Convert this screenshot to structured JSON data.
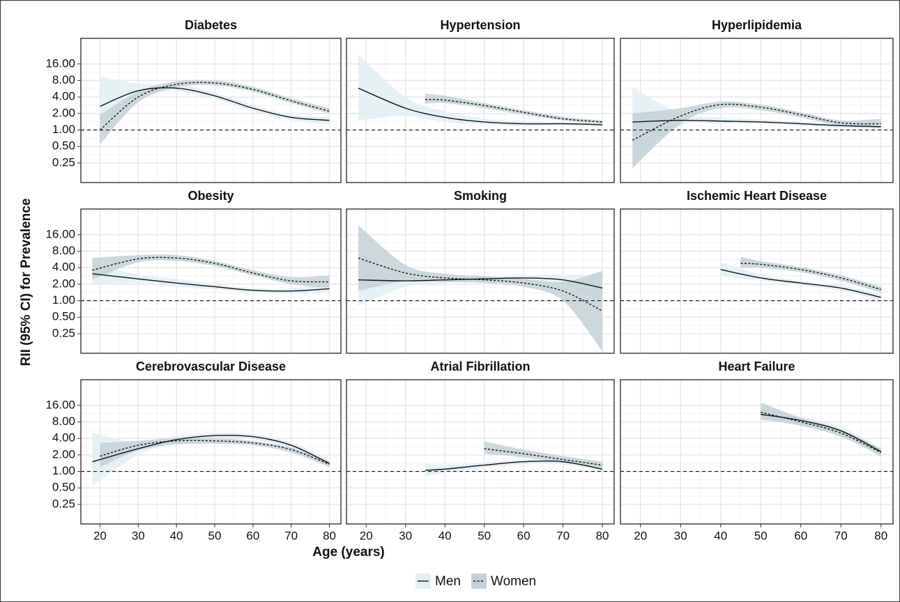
{
  "chart_data": [
    {
      "type": "line",
      "title": "Diabetes",
      "log_y": true,
      "grid": true,
      "hline": 1,
      "xlim": [
        15,
        83
      ],
      "ylim": [
        0.11,
        47
      ],
      "xticks": [
        20,
        30,
        40,
        50,
        60,
        70,
        80
      ],
      "yticks": [
        {
          "value": 0.25,
          "label": "0.25"
        },
        {
          "value": 0.5,
          "label": "0.50"
        },
        {
          "value": 1,
          "label": "1.00"
        },
        {
          "value": 2,
          "label": "2.00"
        },
        {
          "value": 4,
          "label": "4.00"
        },
        {
          "value": 8,
          "label": "8.00"
        },
        {
          "value": 16,
          "label": "16.00"
        }
      ],
      "series": [
        {
          "name": "Men",
          "color": "#e2eff4",
          "linestyle": "solid",
          "x": [
            20,
            30,
            40,
            50,
            60,
            70,
            80
          ],
          "values": [
            2.7,
            5.2,
            5.8,
            4.2,
            2.5,
            1.7,
            1.5
          ],
          "lower": [
            1.2,
            4.0,
            5.0,
            3.7,
            2.2,
            1.5,
            1.3
          ],
          "upper": [
            9.5,
            7.0,
            6.8,
            4.8,
            2.9,
            1.9,
            1.7
          ]
        },
        {
          "name": "Women",
          "color": "#c3d1d6",
          "linestyle": "dotted",
          "x": [
            20,
            30,
            40,
            50,
            60,
            70,
            80
          ],
          "values": [
            1.0,
            4.0,
            6.8,
            7.2,
            5.5,
            3.4,
            2.2
          ],
          "lower": [
            0.55,
            3.2,
            6.0,
            6.5,
            5.0,
            3.1,
            2.0
          ],
          "upper": [
            1.9,
            5.0,
            7.7,
            8.0,
            6.1,
            3.8,
            2.5
          ]
        }
      ]
    },
    {
      "type": "line",
      "title": "Hypertension",
      "log_y": true,
      "grid": true,
      "hline": 1,
      "xlim": [
        15,
        83
      ],
      "ylim": [
        0.11,
        47
      ],
      "xticks": [
        20,
        30,
        40,
        50,
        60,
        70,
        80
      ],
      "yticks": [
        0.25,
        0.5,
        1,
        2,
        4,
        8,
        16
      ],
      "series": [
        {
          "name": "Men",
          "color": "#e2eff4",
          "linestyle": "solid",
          "x": [
            18,
            30,
            40,
            50,
            60,
            70,
            80
          ],
          "values": [
            5.8,
            2.5,
            1.7,
            1.4,
            1.3,
            1.3,
            1.25
          ],
          "lower": [
            1.5,
            1.8,
            1.4,
            1.25,
            1.2,
            1.2,
            1.15
          ],
          "upper": [
            24,
            4.0,
            2.2,
            1.6,
            1.45,
            1.4,
            1.35
          ]
        },
        {
          "name": "Women",
          "color": "#c3d1d6",
          "linestyle": "dotted",
          "x": [
            35,
            40,
            50,
            60,
            70,
            80
          ],
          "values": [
            3.6,
            3.5,
            2.8,
            2.1,
            1.6,
            1.4
          ],
          "lower": [
            3.0,
            3.1,
            2.5,
            1.9,
            1.5,
            1.3
          ],
          "upper": [
            4.6,
            4.2,
            3.1,
            2.3,
            1.75,
            1.5
          ]
        }
      ]
    },
    {
      "type": "line",
      "title": "Hyperlipidemia",
      "log_y": true,
      "grid": true,
      "hline": 1,
      "xlim": [
        15,
        83
      ],
      "ylim": [
        0.11,
        47
      ],
      "xticks": [
        20,
        30,
        40,
        50,
        60,
        70,
        80
      ],
      "yticks": [
        0.25,
        0.5,
        1,
        2,
        4,
        8,
        16
      ],
      "series": [
        {
          "name": "Men",
          "color": "#e2eff4",
          "linestyle": "solid",
          "x": [
            18,
            30,
            40,
            50,
            60,
            70,
            80
          ],
          "values": [
            1.4,
            1.5,
            1.45,
            1.4,
            1.3,
            1.2,
            1.15
          ],
          "lower": [
            0.3,
            1.2,
            1.3,
            1.3,
            1.2,
            1.1,
            1.05
          ],
          "upper": [
            6,
            2.0,
            1.7,
            1.55,
            1.4,
            1.3,
            1.3
          ]
        },
        {
          "name": "Women",
          "color": "#c3d1d6",
          "linestyle": "dotted",
          "x": [
            18,
            30,
            40,
            50,
            60,
            70,
            80
          ],
          "values": [
            0.65,
            1.8,
            2.9,
            2.6,
            1.9,
            1.35,
            1.3
          ],
          "lower": [
            0.2,
            1.3,
            2.5,
            2.3,
            1.7,
            1.2,
            1.1
          ],
          "upper": [
            2.0,
            2.5,
            3.3,
            2.9,
            2.1,
            1.5,
            1.6
          ]
        }
      ]
    },
    {
      "type": "line",
      "title": "Obesity",
      "log_y": true,
      "grid": true,
      "hline": 1,
      "xlim": [
        15,
        83
      ],
      "ylim": [
        0.11,
        47
      ],
      "xticks": [
        20,
        30,
        40,
        50,
        60,
        70,
        80
      ],
      "yticks": [
        {
          "value": 0.25,
          "label": "0.25"
        },
        {
          "value": 0.5,
          "label": "0.50"
        },
        {
          "value": 1,
          "label": "1.00"
        },
        {
          "value": 2,
          "label": "2.00"
        },
        {
          "value": 4,
          "label": "4.00"
        },
        {
          "value": 8,
          "label": "8.00"
        },
        {
          "value": 16,
          "label": "16.00"
        }
      ],
      "series": [
        {
          "name": "Men",
          "color": "#e2eff4",
          "linestyle": "solid",
          "x": [
            18,
            30,
            40,
            50,
            60,
            70,
            80
          ],
          "values": [
            3.1,
            2.5,
            2.1,
            1.8,
            1.55,
            1.5,
            1.65
          ],
          "lower": [
            2.0,
            2.1,
            1.8,
            1.6,
            1.4,
            1.35,
            1.4
          ],
          "upper": [
            4.8,
            3.0,
            2.5,
            2.0,
            1.7,
            1.7,
            2.0
          ]
        },
        {
          "name": "Women",
          "color": "#c3d1d6",
          "linestyle": "dotted",
          "x": [
            18,
            30,
            40,
            50,
            60,
            70,
            80
          ],
          "values": [
            3.6,
            5.8,
            6.0,
            4.8,
            3.2,
            2.3,
            2.2
          ],
          "lower": [
            2.4,
            5.0,
            5.3,
            4.3,
            2.9,
            2.0,
            1.7
          ],
          "upper": [
            6.0,
            6.8,
            6.8,
            5.3,
            3.6,
            2.7,
            2.9
          ]
        }
      ]
    },
    {
      "type": "line",
      "title": "Smoking",
      "log_y": true,
      "grid": true,
      "hline": 1,
      "xlim": [
        15,
        83
      ],
      "ylim": [
        0.11,
        47
      ],
      "xticks": [
        20,
        30,
        40,
        50,
        60,
        70,
        80
      ],
      "yticks": [
        0.25,
        0.5,
        1,
        2,
        4,
        8,
        16
      ],
      "series": [
        {
          "name": "Men",
          "color": "#e2eff4",
          "linestyle": "solid",
          "x": [
            18,
            30,
            40,
            50,
            60,
            70,
            80
          ],
          "values": [
            2.4,
            2.3,
            2.4,
            2.5,
            2.6,
            2.4,
            1.7
          ],
          "lower": [
            0.8,
            1.8,
            2.1,
            2.3,
            2.3,
            1.9,
            1.0
          ],
          "upper": [
            7,
            3.0,
            2.8,
            2.8,
            2.9,
            3.0,
            2.9
          ]
        },
        {
          "name": "Women",
          "color": "#c3d1d6",
          "linestyle": "dotted",
          "x": [
            18,
            30,
            40,
            50,
            60,
            70,
            80
          ],
          "values": [
            6.0,
            3.2,
            2.6,
            2.4,
            2.1,
            1.5,
            0.65
          ],
          "lower": [
            1.5,
            2.3,
            2.2,
            2.1,
            1.8,
            1.0,
            0.12
          ],
          "upper": [
            24,
            4.5,
            3.1,
            2.8,
            2.5,
            2.2,
            3.5
          ]
        }
      ]
    },
    {
      "type": "line",
      "title": "Ischemic Heart Disease",
      "log_y": true,
      "grid": true,
      "hline": 1,
      "xlim": [
        15,
        83
      ],
      "ylim": [
        0.11,
        47
      ],
      "xticks": [
        20,
        30,
        40,
        50,
        60,
        70,
        80
      ],
      "yticks": [
        0.25,
        0.5,
        1,
        2,
        4,
        8,
        16
      ],
      "series": [
        {
          "name": "Men",
          "color": "#e2eff4",
          "linestyle": "solid",
          "x": [
            40,
            50,
            60,
            70,
            80
          ],
          "values": [
            3.7,
            2.6,
            2.1,
            1.7,
            1.15
          ],
          "lower": [
            2.8,
            2.3,
            1.9,
            1.5,
            1.0
          ],
          "upper": [
            5,
            3.0,
            2.3,
            1.9,
            1.35
          ]
        },
        {
          "name": "Women",
          "color": "#c3d1d6",
          "linestyle": "dotted",
          "x": [
            45,
            50,
            60,
            70,
            80
          ],
          "values": [
            4.8,
            4.6,
            3.7,
            2.6,
            1.6
          ],
          "lower": [
            4.0,
            4.0,
            3.3,
            2.3,
            1.4
          ],
          "upper": [
            6.3,
            5.3,
            4.1,
            2.9,
            1.8
          ]
        }
      ]
    },
    {
      "type": "line",
      "title": "Cerebrovascular Disease",
      "log_y": true,
      "grid": true,
      "hline": 1,
      "xlim": [
        15,
        83
      ],
      "ylim": [
        0.11,
        47
      ],
      "xticks": [
        20,
        30,
        40,
        50,
        60,
        70,
        80
      ],
      "yticks": [
        {
          "value": 0.25,
          "label": "0.25"
        },
        {
          "value": 0.5,
          "label": "0.50"
        },
        {
          "value": 1,
          "label": "1.00"
        },
        {
          "value": 2,
          "label": "2.00"
        },
        {
          "value": 4,
          "label": "4.00"
        },
        {
          "value": 8,
          "label": "8.00"
        },
        {
          "value": 16,
          "label": "16.00"
        }
      ],
      "series": [
        {
          "name": "Men",
          "color": "#e2eff4",
          "linestyle": "solid",
          "x": [
            18,
            30,
            40,
            50,
            60,
            70,
            80
          ],
          "values": [
            1.5,
            2.6,
            3.8,
            4.5,
            4.3,
            3.0,
            1.4
          ],
          "lower": [
            0.55,
            2.0,
            3.3,
            4.0,
            3.8,
            2.6,
            1.25
          ],
          "upper": [
            5.0,
            3.4,
            4.4,
            5.1,
            4.8,
            3.4,
            1.6
          ]
        },
        {
          "name": "Women",
          "color": "#c3d1d6",
          "linestyle": "dotted",
          "x": [
            20,
            30,
            40,
            50,
            60,
            70,
            80
          ],
          "values": [
            1.9,
            3.0,
            3.6,
            3.6,
            3.3,
            2.5,
            1.35
          ],
          "lower": [
            1.2,
            2.4,
            3.1,
            3.2,
            3.0,
            2.2,
            1.2
          ],
          "upper": [
            3.3,
            3.6,
            4.1,
            4.0,
            3.6,
            2.7,
            1.5
          ]
        }
      ]
    },
    {
      "type": "line",
      "title": "Atrial Fibrillation",
      "log_y": true,
      "grid": true,
      "hline": 1,
      "xlim": [
        15,
        83
      ],
      "ylim": [
        0.11,
        47
      ],
      "xticks": [
        20,
        30,
        40,
        50,
        60,
        70,
        80
      ],
      "yticks": [
        0.25,
        0.5,
        1,
        2,
        4,
        8,
        16
      ],
      "series": [
        {
          "name": "Men",
          "color": "#e2eff4",
          "linestyle": "solid",
          "x": [
            35,
            40,
            50,
            60,
            70,
            80
          ],
          "values": [
            1.05,
            1.1,
            1.3,
            1.5,
            1.5,
            1.1
          ],
          "lower": [
            0.8,
            0.95,
            1.15,
            1.35,
            1.35,
            1.0
          ],
          "upper": [
            1.4,
            1.3,
            1.45,
            1.65,
            1.65,
            1.25
          ]
        },
        {
          "name": "Women",
          "color": "#c3d1d6",
          "linestyle": "dotted",
          "x": [
            50,
            60,
            70,
            80
          ],
          "values": [
            2.6,
            2.1,
            1.65,
            1.3
          ],
          "lower": [
            2.1,
            1.8,
            1.45,
            1.15
          ],
          "upper": [
            3.5,
            2.5,
            1.9,
            1.5
          ]
        }
      ]
    },
    {
      "type": "line",
      "title": "Heart Failure",
      "log_y": true,
      "grid": true,
      "hline": 1,
      "xlim": [
        15,
        83
      ],
      "ylim": [
        0.11,
        47
      ],
      "xticks": [
        20,
        30,
        40,
        50,
        60,
        70,
        80
      ],
      "yticks": [
        0.25,
        0.5,
        1,
        2,
        4,
        8,
        16
      ],
      "series": [
        {
          "name": "Men",
          "color": "#e2eff4",
          "linestyle": "solid",
          "x": [
            50,
            60,
            70,
            80
          ],
          "values": [
            11,
            8.5,
            5.5,
            2.3
          ],
          "lower": [
            8.5,
            7.2,
            4.6,
            2.0
          ],
          "upper": [
            14,
            10,
            6.5,
            2.7
          ]
        },
        {
          "name": "Women",
          "color": "#c3d1d6",
          "linestyle": "dotted",
          "x": [
            50,
            60,
            70,
            80
          ],
          "values": [
            12,
            8,
            5,
            2.2
          ],
          "lower": [
            9,
            6.8,
            4.3,
            1.9
          ],
          "upper": [
            18,
            9.5,
            5.8,
            2.6
          ]
        }
      ]
    }
  ],
  "xlabel": "Age (years)",
  "ylabel": "RII (95% CI) for Prevalence"
}
